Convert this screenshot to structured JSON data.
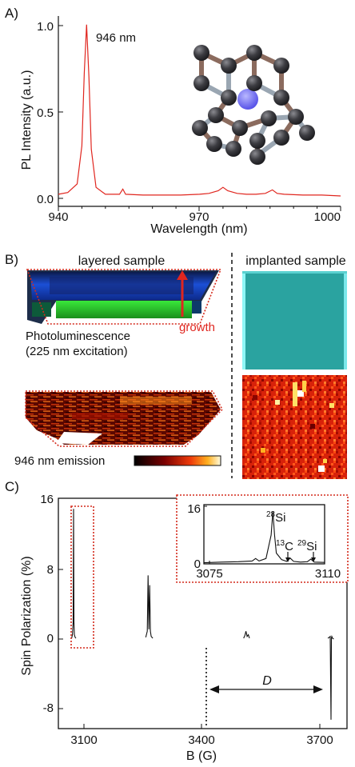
{
  "panel_a": {
    "label": "A)",
    "peak_label": "946 nm",
    "xlabel": "Wavelength (nm)",
    "ylabel": "PL Intensity (a.u.)",
    "xticks": [
      "940",
      "970",
      "1000"
    ],
    "yticks": [
      "0.0",
      "0.5",
      "1.0"
    ],
    "colors": {
      "trace": "#e0261f",
      "atom": "#3b3b3f",
      "bond_a": "#8b6b5e",
      "bond_b": "#9aa6b2",
      "dopant": "#6f6cf5"
    }
  },
  "panel_b": {
    "label": "B)",
    "layered_title": "layered sample",
    "implanted_title": "implanted sample",
    "growth_label": "growth",
    "pl_caption_line1": "Photoluminescence",
    "pl_caption_line2": "(225 nm excitation)",
    "emission_label": "946 nm emission",
    "colors": {
      "outline": "#d42a1c",
      "teal": "#2aa3a0",
      "heat_dark": "#3a0000",
      "heat_mid": "#e8300c",
      "heat_hot": "#ffe066"
    }
  },
  "panel_c": {
    "label": "C)",
    "xlabel": "B (G)",
    "ylabel": "Spin Polarization (%)",
    "xticks": [
      "3100",
      "3400",
      "3700"
    ],
    "yticks": [
      "16",
      "8",
      "0",
      "-8"
    ],
    "d_label": "D",
    "inset": {
      "xticks": [
        "3075",
        "3110"
      ],
      "yticks": [
        "16",
        "0"
      ],
      "peak_labels": [
        {
          "sup": "28",
          "base": "Si"
        },
        {
          "sup": "13",
          "base": "C"
        },
        {
          "sup": "29",
          "base": "Si"
        }
      ]
    }
  },
  "chart_data": [
    {
      "type": "line",
      "xlabel": "Wavelength (nm)",
      "ylabel": "PL Intensity (a.u.)",
      "xlim": [
        940,
        1000
      ],
      "ylim": [
        -0.05,
        1.05
      ],
      "annotations": [
        "946 nm"
      ],
      "x": [
        940,
        942,
        944,
        945,
        945.5,
        946,
        946.5,
        947,
        948,
        950,
        953,
        953.7,
        954.3,
        958,
        962,
        966,
        970,
        972,
        974,
        975,
        976,
        978,
        980,
        982,
        984,
        985.5,
        986.5,
        988,
        992,
        996,
        1000
      ],
      "y": [
        0.02,
        0.03,
        0.08,
        0.3,
        0.72,
        1.0,
        0.7,
        0.28,
        0.06,
        0.02,
        0.02,
        0.05,
        0.02,
        0.015,
        0.015,
        0.015,
        0.02,
        0.025,
        0.04,
        0.06,
        0.04,
        0.025,
        0.02,
        0.02,
        0.025,
        0.045,
        0.025,
        0.02,
        0.015,
        0.015,
        0.01
      ]
    },
    {
      "type": "line",
      "xlabel": "B (G)",
      "ylabel": "Spin Polarization (%)",
      "xlim": [
        3060,
        3800
      ],
      "ylim": [
        -10,
        16
      ],
      "x": [
        3094,
        3096,
        3098,
        3099,
        3100,
        3101,
        3103,
        3105,
        3284,
        3288,
        3290,
        3292,
        3294,
        3296,
        3298,
        3302,
        3535,
        3538,
        3541,
        3544,
        3547,
        3550,
        3751,
        3754,
        3757,
        3759,
        3760,
        3761,
        3763,
        3766
      ],
      "y": [
        0.2,
        0.6,
        2.0,
        14.8,
        2.0,
        0.6,
        0.3,
        0.2,
        0.3,
        1.0,
        7.3,
        1.2,
        6.2,
        1.0,
        0.4,
        0.2,
        0.2,
        0.5,
        1.0,
        0.4,
        0.6,
        0.2,
        0.2,
        0.3,
        0.4,
        -9.0,
        0.2,
        0.4,
        0.2,
        0.1
      ]
    },
    {
      "type": "line",
      "title": "inset",
      "xlim": [
        3075,
        3110
      ],
      "ylim": [
        0,
        16
      ],
      "x": [
        3075,
        3080,
        3085,
        3089,
        3090,
        3091,
        3093,
        3094.5,
        3095,
        3095.5,
        3096,
        3097.5,
        3099,
        3100,
        3101,
        3103,
        3105,
        3106,
        3107,
        3110
      ],
      "y": [
        0.3,
        0.5,
        0.6,
        0.8,
        1.5,
        0.8,
        1.5,
        8.0,
        14.6,
        8.0,
        3.0,
        1.2,
        0.7,
        1.6,
        0.7,
        0.5,
        0.6,
        1.3,
        0.5,
        0.4
      ]
    }
  ]
}
